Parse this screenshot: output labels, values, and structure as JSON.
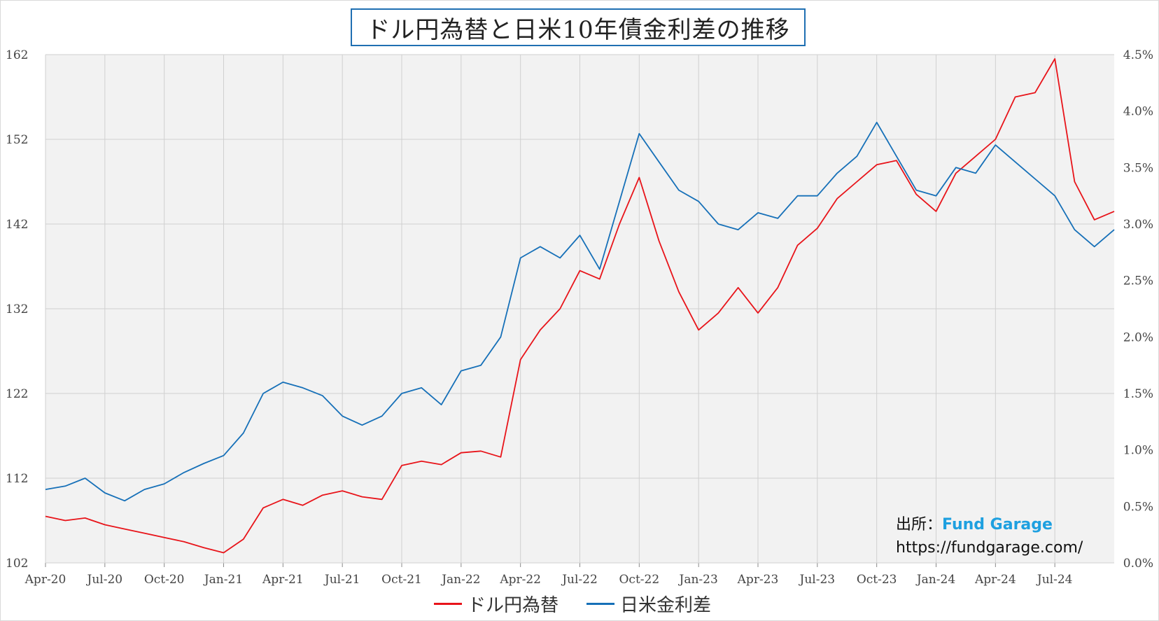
{
  "chart_data": {
    "type": "line",
    "title": "ドル円為替と日米10年債金利差の推移",
    "x_tick_labels": [
      "Apr-20",
      "Jul-20",
      "Oct-20",
      "Jan-21",
      "Apr-21",
      "Jul-21",
      "Oct-21",
      "Jan-22",
      "Apr-22",
      "Jul-22",
      "Oct-22",
      "Jan-23",
      "Apr-23",
      "Jul-23",
      "Oct-23",
      "Jan-24",
      "Apr-24",
      "Jul-24"
    ],
    "x_range": [
      "2020-04",
      "2024-10"
    ],
    "y_left_range": [
      102,
      162
    ],
    "y_left_ticks": [
      "102",
      "112",
      "122",
      "132",
      "142",
      "152",
      "162"
    ],
    "y_right_range": [
      0.0,
      4.5
    ],
    "y_right_ticks": [
      "0.0%",
      "0.5%",
      "1.0%",
      "1.5%",
      "2.0%",
      "2.5%",
      "3.0%",
      "3.5%",
      "4.0%",
      "4.5%"
    ],
    "grid": true,
    "legend_position": "bottom",
    "series": [
      {
        "name": "ドル円為替",
        "color": "#e8141a",
        "axis": "left",
        "x": [
          "2020-04",
          "2020-05",
          "2020-06",
          "2020-07",
          "2020-08",
          "2020-09",
          "2020-10",
          "2020-11",
          "2020-12",
          "2021-01",
          "2021-02",
          "2021-03",
          "2021-04",
          "2021-05",
          "2021-06",
          "2021-07",
          "2021-08",
          "2021-09",
          "2021-10",
          "2021-11",
          "2021-12",
          "2022-01",
          "2022-02",
          "2022-03",
          "2022-04",
          "2022-05",
          "2022-06",
          "2022-07",
          "2022-08",
          "2022-09",
          "2022-10",
          "2022-11",
          "2022-12",
          "2023-01",
          "2023-02",
          "2023-03",
          "2023-04",
          "2023-05",
          "2023-06",
          "2023-07",
          "2023-08",
          "2023-09",
          "2023-10",
          "2023-11",
          "2023-12",
          "2024-01",
          "2024-02",
          "2024-03",
          "2024-04",
          "2024-05",
          "2024-06",
          "2024-07",
          "2024-08",
          "2024-09",
          "2024-10"
        ],
        "values": [
          107.5,
          107.0,
          107.3,
          106.5,
          106.0,
          105.5,
          105.0,
          104.5,
          103.8,
          103.2,
          104.8,
          108.5,
          109.5,
          108.8,
          110.0,
          110.5,
          109.8,
          109.5,
          113.5,
          114.0,
          113.6,
          115.0,
          115.2,
          114.5,
          126.0,
          129.5,
          132.0,
          136.5,
          135.5,
          142.0,
          147.5,
          140.0,
          134.0,
          129.5,
          131.5,
          134.5,
          131.5,
          134.5,
          139.5,
          141.5,
          145.0,
          147.0,
          149.0,
          149.5,
          145.5,
          143.5,
          148.0,
          150.0,
          152.0,
          157.0,
          157.5,
          161.5,
          147.0,
          142.5,
          143.5
        ]
      },
      {
        "name": "日米金利差",
        "color": "#1670b8",
        "axis": "right",
        "x": [
          "2020-04",
          "2020-05",
          "2020-06",
          "2020-07",
          "2020-08",
          "2020-09",
          "2020-10",
          "2020-11",
          "2020-12",
          "2021-01",
          "2021-02",
          "2021-03",
          "2021-04",
          "2021-05",
          "2021-06",
          "2021-07",
          "2021-08",
          "2021-09",
          "2021-10",
          "2021-11",
          "2021-12",
          "2022-01",
          "2022-02",
          "2022-03",
          "2022-04",
          "2022-05",
          "2022-06",
          "2022-07",
          "2022-08",
          "2022-09",
          "2022-10",
          "2022-11",
          "2022-12",
          "2023-01",
          "2023-02",
          "2023-03",
          "2023-04",
          "2023-05",
          "2023-06",
          "2023-07",
          "2023-08",
          "2023-09",
          "2023-10",
          "2023-11",
          "2023-12",
          "2024-01",
          "2024-02",
          "2024-03",
          "2024-04",
          "2024-05",
          "2024-06",
          "2024-07",
          "2024-08",
          "2024-09",
          "2024-10"
        ],
        "values": [
          0.65,
          0.68,
          0.75,
          0.62,
          0.55,
          0.65,
          0.7,
          0.8,
          0.88,
          0.95,
          1.15,
          1.5,
          1.6,
          1.55,
          1.48,
          1.3,
          1.22,
          1.3,
          1.5,
          1.55,
          1.4,
          1.7,
          1.75,
          2.0,
          2.7,
          2.8,
          2.7,
          2.9,
          2.6,
          3.2,
          3.8,
          3.55,
          3.3,
          3.2,
          3.0,
          2.95,
          3.1,
          3.05,
          3.25,
          3.25,
          3.45,
          3.6,
          3.9,
          3.6,
          3.3,
          3.25,
          3.5,
          3.45,
          3.7,
          3.55,
          3.4,
          3.25,
          2.95,
          2.8,
          2.95
        ]
      }
    ]
  },
  "source": {
    "label": "出所：",
    "brand": "Fund Garage",
    "url": "https://fundgarage.com/"
  }
}
